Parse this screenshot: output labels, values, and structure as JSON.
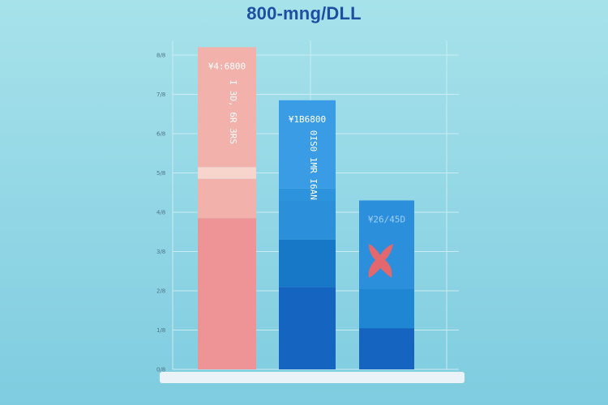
{
  "title": "800-mng/DLL",
  "chart_data": {
    "type": "bar",
    "title": "800-mng/DLL",
    "xlabel": "",
    "ylabel": "",
    "ylim": [
      0,
      8
    ],
    "grid": true,
    "y_ticks": [
      "0/8",
      "1/8",
      "2/8",
      "3/8",
      "4/8",
      "5/8",
      "6/8",
      "7/8",
      "8/8"
    ],
    "categories": [
      "",
      "",
      ""
    ],
    "values": [
      8.2,
      6.85,
      4.3
    ],
    "segments": [
      [
        {
          "from": 0,
          "to": 3.85,
          "color": "#ee9497"
        },
        {
          "from": 3.85,
          "to": 4.85,
          "color": "#f2b1ab"
        },
        {
          "from": 4.85,
          "to": 5.15,
          "color": "#f7d4cc"
        },
        {
          "from": 5.15,
          "to": 8.2,
          "color": "#f2b1ab"
        }
      ],
      [
        {
          "from": 0,
          "to": 2.1,
          "color": "#1565c0"
        },
        {
          "from": 2.1,
          "to": 3.3,
          "color": "#1878c8"
        },
        {
          "from": 3.3,
          "to": 4.3,
          "color": "#2b90d9"
        },
        {
          "from": 4.3,
          "to": 4.6,
          "color": "#2c93dc"
        },
        {
          "from": 4.6,
          "to": 6.85,
          "color": "#3a9ce4"
        }
      ],
      [
        {
          "from": 0,
          "to": 1.05,
          "color": "#1565c0"
        },
        {
          "from": 1.05,
          "to": 2.05,
          "color": "#1e86d2"
        },
        {
          "from": 2.05,
          "to": 4.3,
          "color": "#2b8fdb"
        }
      ]
    ],
    "bar_top_labels": [
      "¥4:6800",
      "¥1B6800",
      "¥26/45D"
    ],
    "bar_vertical_labels": [
      "I 3D, 6R 3RS",
      "0IS0 1MR I6AN",
      ""
    ],
    "label_colors": [
      "#ffffff",
      "#ffffff",
      "#9ecfff"
    ],
    "marker_color": "#e2686e"
  }
}
